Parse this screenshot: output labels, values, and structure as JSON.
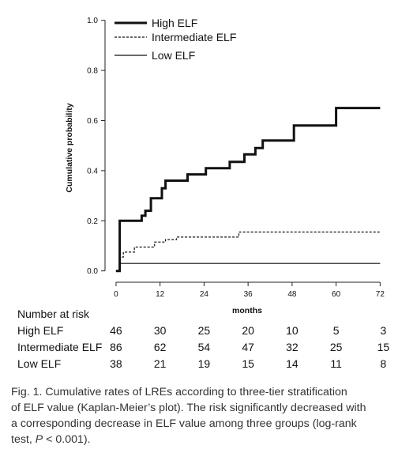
{
  "chart_data": {
    "type": "line",
    "step": true,
    "ylabel": "Cumulative probability",
    "xlabel": "months",
    "xlim": [
      -3,
      73
    ],
    "ylim": [
      -0.02,
      1.04
    ],
    "x_ticks": [
      0,
      12,
      24,
      36,
      48,
      60,
      72
    ],
    "y_ticks": [
      0.0,
      0.2,
      0.4,
      0.6,
      0.8,
      1.0
    ],
    "y_tick_labels": [
      "0.0",
      "0.2",
      "0.4",
      "0.6",
      "0.8",
      "1.0"
    ],
    "legend_position": "top-left",
    "series": [
      {
        "name": "High ELF",
        "style": "thick-solid",
        "points": [
          [
            0,
            0
          ],
          [
            1,
            0
          ],
          [
            1,
            0.2
          ],
          [
            7,
            0.2
          ],
          [
            7,
            0.22
          ],
          [
            8,
            0.22
          ],
          [
            8,
            0.24
          ],
          [
            9.5,
            0.24
          ],
          [
            9.5,
            0.29
          ],
          [
            12.5,
            0.29
          ],
          [
            12.5,
            0.33
          ],
          [
            13.5,
            0.33
          ],
          [
            13.5,
            0.36
          ],
          [
            19.5,
            0.36
          ],
          [
            19.5,
            0.385
          ],
          [
            24.5,
            0.385
          ],
          [
            24.5,
            0.41
          ],
          [
            31,
            0.41
          ],
          [
            31,
            0.435
          ],
          [
            35,
            0.435
          ],
          [
            35,
            0.465
          ],
          [
            38,
            0.465
          ],
          [
            38,
            0.49
          ],
          [
            40,
            0.49
          ],
          [
            40,
            0.52
          ],
          [
            48.5,
            0.52
          ],
          [
            48.5,
            0.58
          ],
          [
            60,
            0.58
          ],
          [
            60,
            0.65
          ],
          [
            72,
            0.65
          ]
        ]
      },
      {
        "name": "Intermediate ELF",
        "style": "dashed",
        "points": [
          [
            0,
            0
          ],
          [
            1,
            0
          ],
          [
            1,
            0.055
          ],
          [
            2,
            0.055
          ],
          [
            2,
            0.075
          ],
          [
            5,
            0.075
          ],
          [
            5,
            0.095
          ],
          [
            10.5,
            0.095
          ],
          [
            10.5,
            0.115
          ],
          [
            13.5,
            0.115
          ],
          [
            13.5,
            0.125
          ],
          [
            16.5,
            0.125
          ],
          [
            16.5,
            0.135
          ],
          [
            33.5,
            0.135
          ],
          [
            33.5,
            0.155
          ],
          [
            72,
            0.155
          ]
        ]
      },
      {
        "name": "Low ELF",
        "style": "thin-solid",
        "points": [
          [
            0,
            0
          ],
          [
            1,
            0
          ],
          [
            1,
            0.03
          ],
          [
            72,
            0.03
          ]
        ]
      }
    ]
  },
  "risk_table": {
    "title": "Number at risk",
    "rows": [
      {
        "label": "High ELF",
        "values": [
          "46",
          "30",
          "25",
          "20",
          "10",
          "5",
          "3"
        ]
      },
      {
        "label": "Intermediate ELF",
        "values": [
          "86",
          "62",
          "54",
          "47",
          "32",
          "25",
          "15"
        ]
      },
      {
        "label": "Low ELF",
        "values": [
          "38",
          "21",
          "19",
          "15",
          "14",
          "11",
          "8"
        ]
      }
    ]
  },
  "caption": {
    "line1": "Fig. 1. Cumulative rates of LREs according to three-tier stratification",
    "line2": "of ELF value (Kaplan-Meier’s plot). The risk significantly decreased with",
    "line3": "a corresponding decrease in ELF value among three groups (log-rank",
    "line4_prefix": "test, ",
    "line4_p": "P",
    "line4_suffix": " < 0.001)."
  }
}
